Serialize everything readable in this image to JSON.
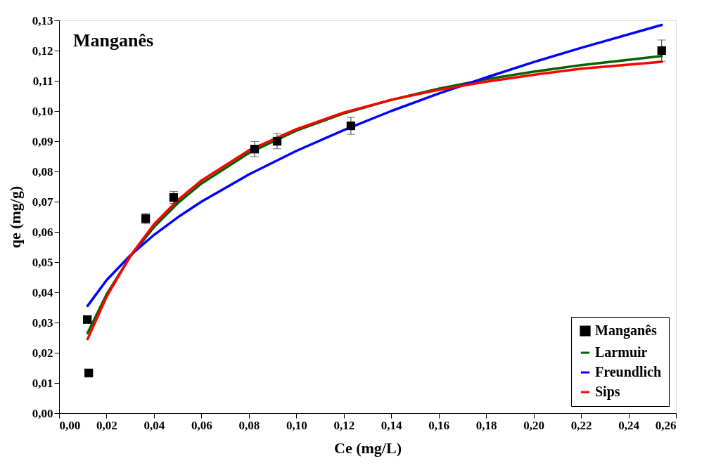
{
  "chart_data": {
    "type": "scatter",
    "title": "Manganês",
    "xlabel": "Ce (mg/L)",
    "ylabel": "qe (mg/g)",
    "xlim": [
      0,
      0.26
    ],
    "ylim": [
      0,
      0.13
    ],
    "xticks": [
      {
        "value": 0,
        "label": "0,00"
      },
      {
        "value": 0.02,
        "label": "0,02"
      },
      {
        "value": 0.04,
        "label": "0,04"
      },
      {
        "value": 0.06,
        "label": "0,06"
      },
      {
        "value": 0.08,
        "label": "0,08"
      },
      {
        "value": 0.1,
        "label": "0,10"
      },
      {
        "value": 0.12,
        "label": "0,12"
      },
      {
        "value": 0.14,
        "label": "0,14"
      },
      {
        "value": 0.16,
        "label": "0,16"
      },
      {
        "value": 0.18,
        "label": "0,18"
      },
      {
        "value": 0.2,
        "label": "0,20"
      },
      {
        "value": 0.22,
        "label": "0,22"
      },
      {
        "value": 0.24,
        "label": "0,24"
      },
      {
        "value": 0.26,
        "label": "0,26"
      }
    ],
    "yticks": [
      {
        "value": 0,
        "label": "0,00"
      },
      {
        "value": 0.01,
        "label": "0,01"
      },
      {
        "value": 0.02,
        "label": "0,02"
      },
      {
        "value": 0.03,
        "label": "0,03"
      },
      {
        "value": 0.04,
        "label": "0,04"
      },
      {
        "value": 0.05,
        "label": "0,05"
      },
      {
        "value": 0.06,
        "label": "0,06"
      },
      {
        "value": 0.07,
        "label": "0,07"
      },
      {
        "value": 0.08,
        "label": "0,08"
      },
      {
        "value": 0.09,
        "label": "0,09"
      },
      {
        "value": 0.1,
        "label": "0,10"
      },
      {
        "value": 0.11,
        "label": "0,11"
      },
      {
        "value": 0.12,
        "label": "0,12"
      },
      {
        "value": 0.13,
        "label": "0,13"
      }
    ],
    "grid": false,
    "legend": "bottom right",
    "series": [
      {
        "name": "Manganês",
        "marker": "square",
        "color": "#000000",
        "x": [
          0.0119,
          0.0125,
          0.0365,
          0.0483,
          0.0824,
          0.0919,
          0.123,
          0.254
        ],
        "values": [
          0.031,
          0.0133,
          0.0644,
          0.0714,
          0.0874,
          0.09,
          0.0951,
          0.12
        ],
        "errors": [
          null,
          null,
          0.0017,
          0.002,
          0.0025,
          0.0025,
          0.0028,
          0.0035
        ]
      },
      {
        "name": "Larmuir",
        "type": "line",
        "marker": "none",
        "line_style": "solid",
        "color": "#006400",
        "x": [
          0.012,
          0.02,
          0.03,
          0.04,
          0.05,
          0.06,
          0.08,
          0.1,
          0.12,
          0.14,
          0.16,
          0.18,
          0.2,
          0.22,
          0.254
        ],
        "values": [
          0.0265,
          0.0393,
          0.0518,
          0.0616,
          0.0695,
          0.076,
          0.0861,
          0.0935,
          0.0992,
          0.1037,
          0.1074,
          0.1105,
          0.113,
          0.1152,
          0.1182
        ]
      },
      {
        "name": "Freundlich",
        "type": "line",
        "marker": "none",
        "line_style": "solid",
        "color": "#0000ff",
        "x": [
          0.012,
          0.02,
          0.03,
          0.04,
          0.05,
          0.06,
          0.08,
          0.1,
          0.12,
          0.14,
          0.16,
          0.18,
          0.2,
          0.22,
          0.254
        ],
        "values": [
          0.0355,
          0.044,
          0.0522,
          0.059,
          0.0648,
          0.07,
          0.079,
          0.0868,
          0.0937,
          0.1,
          0.1058,
          0.1111,
          0.1162,
          0.1209,
          0.1285
        ]
      },
      {
        "name": "Sips",
        "type": "line",
        "marker": "none",
        "line_style": "solid",
        "color": "#ff0000",
        "x": [
          0.012,
          0.02,
          0.03,
          0.04,
          0.05,
          0.06,
          0.08,
          0.1,
          0.12,
          0.14,
          0.16,
          0.18,
          0.2,
          0.22,
          0.254
        ],
        "values": [
          0.0245,
          0.0385,
          0.052,
          0.0625,
          0.0705,
          0.077,
          0.087,
          0.094,
          0.0995,
          0.1037,
          0.107,
          0.1097,
          0.112,
          0.114,
          0.1163
        ]
      }
    ]
  }
}
